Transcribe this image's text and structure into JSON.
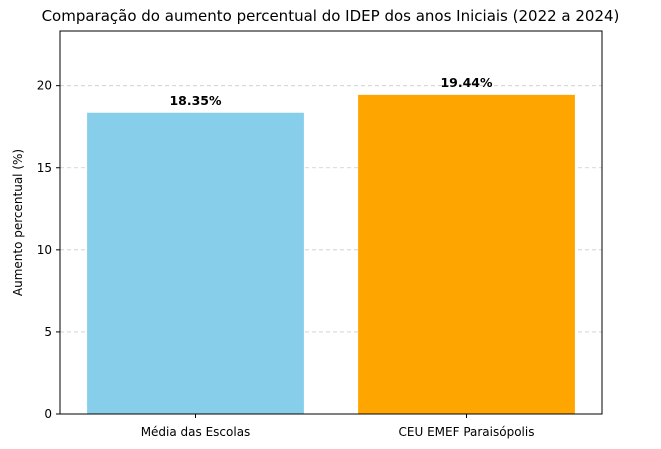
{
  "chart_data": {
    "type": "bar",
    "title": "Comparação do aumento percentual do IDEP dos anos Iniciais (2022 a 2024)",
    "xlabel": "",
    "ylabel": "Aumento percentual (%)",
    "categories": [
      "Média das Escolas",
      "CEU EMEF Paraisópolis"
    ],
    "values": [
      18.35,
      19.44
    ],
    "data_labels": [
      "18.35%",
      "19.44%"
    ],
    "colors": [
      "#87ceeb",
      "#ffa500"
    ],
    "ylim": [
      0,
      23.33
    ],
    "yticks": [
      0,
      5,
      10,
      15,
      20
    ],
    "ytick_labels": [
      "0",
      "5",
      "10",
      "15",
      "20"
    ],
    "grid": "y-dashed",
    "legend": "none"
  }
}
